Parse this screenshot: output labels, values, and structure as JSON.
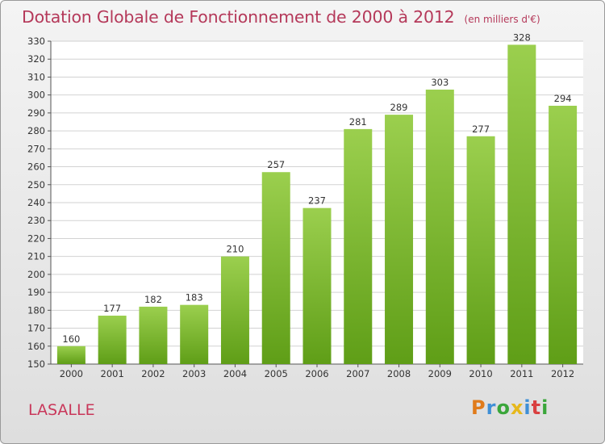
{
  "header": {
    "title": "Dotation Globale de Fonctionnement de 2000 à 2012",
    "subtitle": "(en milliers d'€)"
  },
  "footer": {
    "commune": "LASALLE",
    "logo_text": "Proxiti",
    "logo_colors": [
      "#e07b1b",
      "#3f8fd6",
      "#3aa63a",
      "#e6b81c",
      "#3f8fd6",
      "#d94040",
      "#3aa63a"
    ]
  },
  "colors": {
    "accent": "#b5395a",
    "bar_light": "#9bcf4e",
    "bar_dark": "#5f9e17"
  },
  "chart_data": {
    "type": "bar",
    "categories": [
      "2000",
      "2001",
      "2002",
      "2003",
      "2004",
      "2005",
      "2006",
      "2007",
      "2008",
      "2009",
      "2010",
      "2011",
      "2012"
    ],
    "values": [
      160,
      177,
      182,
      183,
      210,
      257,
      237,
      281,
      289,
      303,
      277,
      328,
      294
    ],
    "title": "Dotation Globale de Fonctionnement de 2000 à 2012",
    "ylim": [
      150,
      330
    ],
    "yticks": [
      150,
      160,
      170,
      180,
      190,
      200,
      210,
      220,
      230,
      240,
      250,
      260,
      270,
      280,
      290,
      300,
      310,
      320,
      330
    ],
    "grid": true
  }
}
